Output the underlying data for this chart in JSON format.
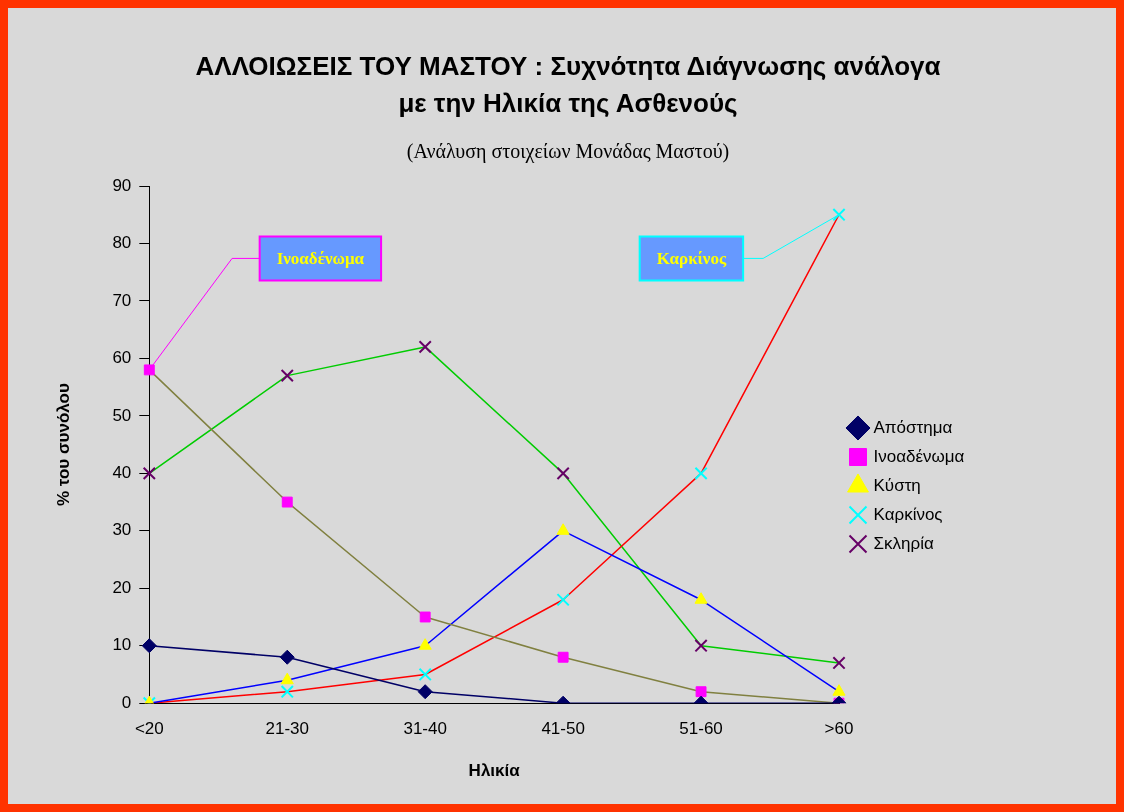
{
  "chart_data": {
    "type": "line",
    "title": "ΑΛΛΟΙΩΣΕΙΣ ΤΟΥ ΜΑΣΤΟΥ : Συχνότητα Διάγνωσης ανάλογα με την Ηλικία της Ασθενούς",
    "subtitle": "(Ανάλυση στοιχείων Μονάδας Μαστού)",
    "xlabel": "Ηλικία",
    "ylabel": "% του συνόλου",
    "categories": [
      "<20",
      "21-30",
      "31-40",
      "41-50",
      "51-60",
      ">60"
    ],
    "ylim": [
      0,
      90
    ],
    "yticks": [
      0,
      10,
      20,
      30,
      40,
      50,
      60,
      70,
      80,
      90
    ],
    "grid": false,
    "legend": "right",
    "line_style": "solid",
    "series": [
      {
        "name": "Απόστημα",
        "color": "#000066",
        "colors": [
          "#000066",
          "#000066",
          "#000066",
          "#000066",
          "#000066",
          "#000066"
        ],
        "marker": "diamond",
        "values": [
          10,
          8,
          2,
          0,
          0,
          0
        ]
      },
      {
        "name": "Ινοαδένωμα",
        "color": "#808040",
        "colors": [
          "#ff00ff",
          "#ff00ff",
          "#ff00ff",
          "#ff00ff",
          "#ff00ff",
          "#ff00ff"
        ],
        "marker": "square",
        "values": [
          58,
          35,
          15,
          8,
          2,
          0
        ]
      },
      {
        "name": "Κύστη",
        "color": "#0000ff",
        "colors": [
          "#ffff00",
          "#ffff00",
          "#ffff00",
          "#ffff00",
          "#ffff00",
          "#ffff00"
        ],
        "marker": "triangle",
        "values": [
          0,
          4,
          10,
          30,
          18,
          2
        ]
      },
      {
        "name": "Καρκίνος",
        "color": "#ff0000",
        "colors": [
          "#00ffff",
          "#00ffff",
          "#00ffff",
          "#00ffff",
          "#00ffff",
          "#00ffff"
        ],
        "marker": "cross",
        "values": [
          0,
          2,
          5,
          18,
          40,
          85
        ]
      },
      {
        "name": "Σκληρία",
        "color": "#00cc00",
        "colors": [
          "#660066",
          "#660066",
          "#660066",
          "#660066",
          "#660066",
          "#660066"
        ],
        "marker": "cross",
        "values": [
          40,
          57,
          62,
          40,
          10,
          7
        ]
      }
    ],
    "annotations": [
      {
        "text": "Ινοαδένωμα",
        "x": "<20",
        "y": 58
      },
      {
        "text": "Καρκίνος",
        "x": ">60",
        "y": 85
      }
    ]
  }
}
